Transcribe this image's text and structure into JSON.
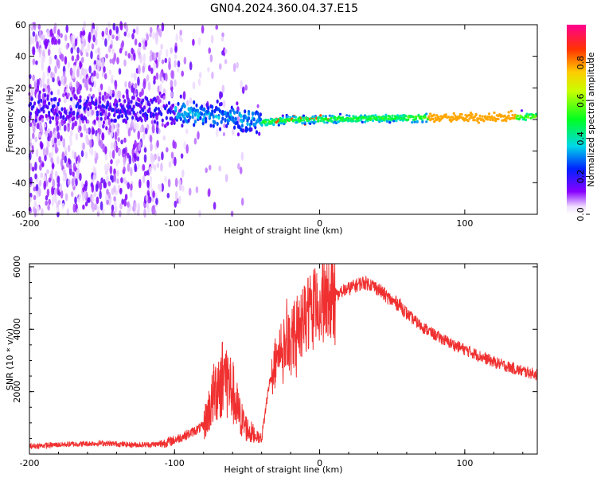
{
  "title": "GN04.2024.360.04.37.E15",
  "chart_data": [
    {
      "type": "heatmap",
      "xlabel": "Height of straight line (km)",
      "ylabel": "Frequency (Hz)",
      "xlim": [
        -200,
        150
      ],
      "ylim": [
        -60,
        60
      ],
      "xticks": [
        -200,
        -100,
        0,
        100
      ],
      "yticks": [
        -60,
        -40,
        -20,
        0,
        20,
        40,
        60
      ],
      "colorbar": {
        "label": "Normalized spectral amplitude",
        "ticks": [
          0.0,
          0.2,
          0.4,
          0.6,
          0.8
        ],
        "range": [
          0,
          1
        ]
      },
      "ridge": {
        "x": [
          -200,
          -150,
          -100,
          -70,
          -50,
          -40,
          -20,
          0,
          50,
          80,
          100,
          150
        ],
        "y": [
          8,
          6,
          5,
          2,
          0,
          -2,
          0,
          0,
          1,
          1,
          1,
          2
        ]
      }
    },
    {
      "type": "line",
      "xlabel": "Height of straight line (km)",
      "ylabel": "SNR (10 * v/v)",
      "xlim": [
        -200,
        150
      ],
      "ylim": [
        0,
        6100
      ],
      "xticks": [
        -200,
        -100,
        0,
        100
      ],
      "yticks": [
        2000,
        4000,
        6000
      ],
      "color": "#f03030",
      "x": [
        -200,
        -180,
        -150,
        -130,
        -120,
        -110,
        -100,
        -90,
        -80,
        -75,
        -70,
        -65,
        -60,
        -55,
        -50,
        -45,
        -40,
        -35,
        -30,
        -25,
        -20,
        -15,
        -10,
        -5,
        0,
        5,
        10,
        15,
        20,
        25,
        30,
        35,
        40,
        45,
        50,
        55,
        60,
        70,
        80,
        90,
        100,
        110,
        120,
        130,
        140,
        150
      ],
      "y": [
        250,
        300,
        350,
        300,
        300,
        320,
        450,
        650,
        900,
        1600,
        2300,
        2500,
        2000,
        1200,
        800,
        600,
        500,
        2200,
        3000,
        3500,
        3700,
        4000,
        4300,
        4600,
        4800,
        5000,
        5100,
        5200,
        5300,
        5400,
        5500,
        5450,
        5300,
        5100,
        4900,
        4800,
        4500,
        4100,
        3800,
        3550,
        3350,
        3150,
        2950,
        2800,
        2650,
        2550
      ]
    }
  ]
}
